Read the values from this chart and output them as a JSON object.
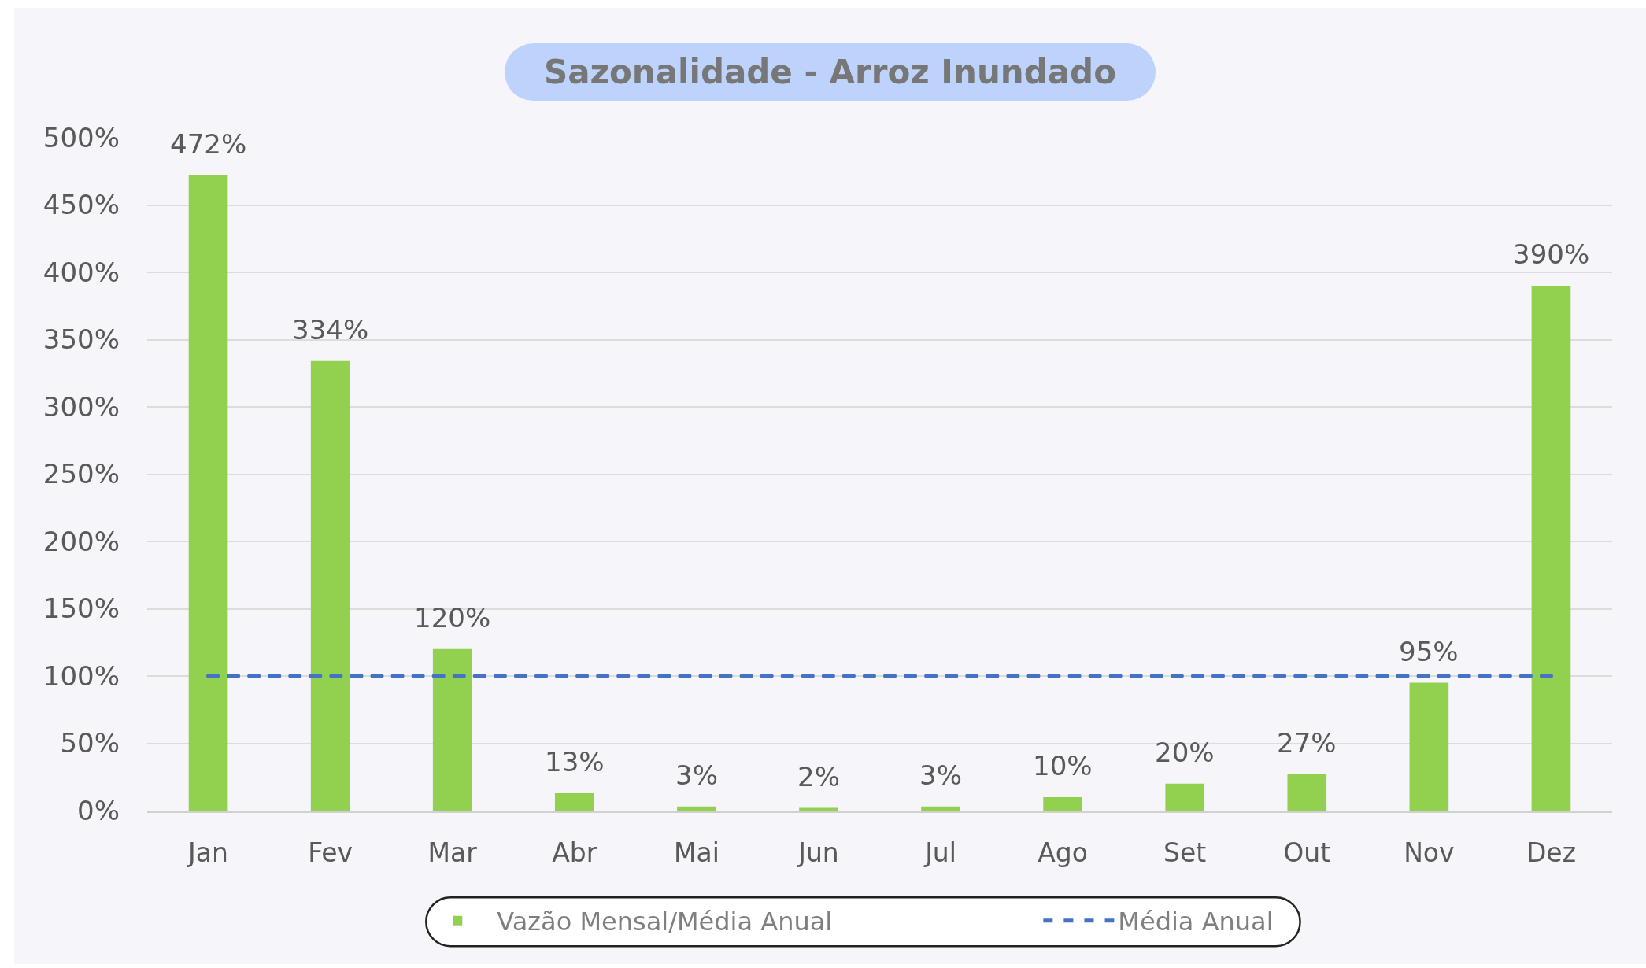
{
  "chart_data": {
    "type": "bar",
    "title": "Sazonalidade - Arroz Inundado",
    "categories": [
      "Jan",
      "Fev",
      "Mar",
      "Abr",
      "Mai",
      "Jun",
      "Jul",
      "Ago",
      "Set",
      "Out",
      "Nov",
      "Dez"
    ],
    "series": [
      {
        "name": "Vazão Mensal/Média Anual",
        "color": "#92d050",
        "values": [
          472,
          334,
          120,
          13,
          3,
          2,
          3,
          10,
          20,
          27,
          95,
          390
        ],
        "value_labels": [
          "472%",
          "334%",
          "120%",
          "13%",
          "3%",
          "2%",
          "3%",
          "10%",
          "20%",
          "27%",
          "95%",
          "390%"
        ]
      },
      {
        "name": "Média Anual",
        "type": "line",
        "color": "#4472c4",
        "line_style": "dashed",
        "values": [
          100,
          100,
          100,
          100,
          100,
          100,
          100,
          100,
          100,
          100,
          100,
          100
        ]
      }
    ],
    "ylim": [
      0,
      500
    ],
    "yticks": [
      {
        "value": 0,
        "label": "0%"
      },
      {
        "value": 50,
        "label": "50%"
      },
      {
        "value": 100,
        "label": "100%"
      },
      {
        "value": 150,
        "label": "150%"
      },
      {
        "value": 200,
        "label": "200%"
      },
      {
        "value": 250,
        "label": "250%"
      },
      {
        "value": 300,
        "label": "300%"
      },
      {
        "value": 350,
        "label": "350%"
      },
      {
        "value": 400,
        "label": "400%"
      },
      {
        "value": 450,
        "label": "450%"
      },
      {
        "value": 500,
        "label": "500%"
      }
    ],
    "grid": "y",
    "legend": "bottom"
  }
}
